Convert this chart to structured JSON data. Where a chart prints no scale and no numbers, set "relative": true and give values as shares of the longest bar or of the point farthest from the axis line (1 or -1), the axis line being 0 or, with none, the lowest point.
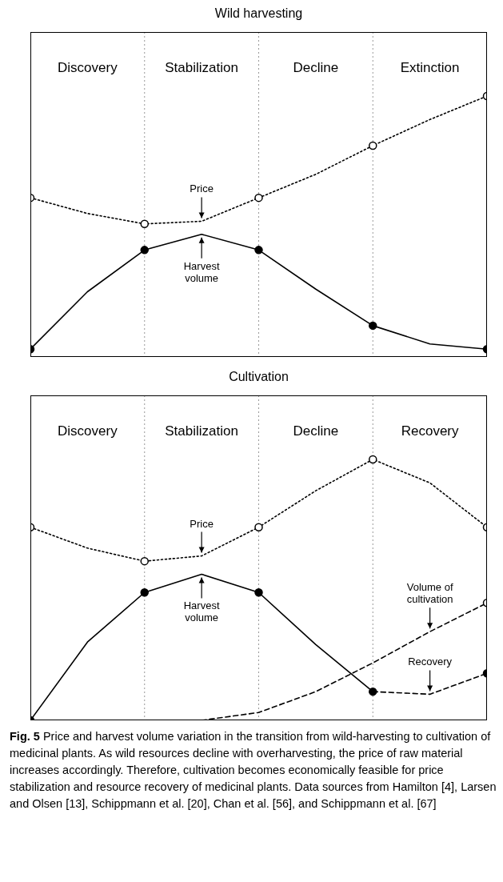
{
  "chart_data": [
    {
      "type": "line",
      "title": "Wild harvesting",
      "relative": true,
      "categories": [
        null,
        "Discovery",
        null,
        "Stabilization",
        null,
        "Decline",
        null,
        "Extinction",
        null
      ],
      "grid": "x",
      "series": [
        {
          "color": "#000000",
          "values": [
            0.61,
            0.55,
            0.51,
            0.52,
            0.61,
            0.7,
            0.81,
            0.91,
            1
          ],
          "line_style": "dotted",
          "marker": "none"
        },
        {
          "color": "#000000",
          "values": [
            0.03,
            0.25,
            0.41,
            0.47,
            0.41,
            0.26,
            0.12,
            0.05,
            0.03
          ],
          "line_style": "solid",
          "marker": "none"
        },
        {
          "type": "scatter",
          "color": "#ffffff",
          "values": [
            0.61,
            null,
            0.51,
            null,
            0.61,
            null,
            0.81,
            null,
            1
          ],
          "marker": "circle"
        },
        {
          "type": "scatter",
          "color": "#000000",
          "values": [
            0.03,
            null,
            0.41,
            null,
            0.41,
            null,
            0.12,
            null,
            0.03
          ],
          "marker": "circle"
        }
      ],
      "annotations": [
        {
          "text": "Price",
          "x": "Stabilization",
          "y": 0.52
        },
        {
          "text": "Harvest volume",
          "x": "Stabilization",
          "y": 0.47
        }
      ]
    },
    {
      "type": "line",
      "title": "Cultivation",
      "relative": true,
      "categories": [
        null,
        "Discovery",
        null,
        "Stabilization",
        null,
        "Decline",
        null,
        "Recovery",
        null
      ],
      "grid": "x",
      "series": [
        {
          "color": "#000000",
          "values": [
            0.74,
            0.66,
            0.61,
            0.63,
            0.74,
            0.88,
            1,
            0.91,
            0.74
          ],
          "line_style": "dotted",
          "marker": "none"
        },
        {
          "color": "#000000",
          "values": [
            0,
            0.3,
            0.49,
            0.56,
            0.49,
            0.29,
            0.11,
            null,
            null
          ],
          "line_style": "solid",
          "marker": "none"
        },
        {
          "color": "#000000",
          "values": [
            null,
            null,
            null,
            null,
            null,
            null,
            0.11,
            0.1,
            0.18
          ],
          "line_style": "dashed",
          "marker": "none"
        },
        {
          "color": "#000000",
          "values": [
            null,
            null,
            null,
            0,
            0.03,
            0.11,
            0.22,
            0.34,
            0.45
          ],
          "line_style": "dashed",
          "marker": "none"
        },
        {
          "type": "scatter",
          "color": "#ffffff",
          "values": [
            0.74,
            null,
            0.61,
            null,
            0.74,
            null,
            1,
            null,
            0.74
          ],
          "marker": "circle"
        },
        {
          "type": "scatter",
          "color": "#ffffff",
          "values": [
            null,
            null,
            null,
            null,
            null,
            null,
            null,
            null,
            0.45
          ],
          "marker": "circle"
        },
        {
          "type": "scatter",
          "color": "#000000",
          "values": [
            0,
            null,
            0.49,
            null,
            0.49,
            null,
            0.11,
            null,
            0.18
          ],
          "marker": "circle"
        }
      ],
      "annotations": [
        {
          "text": "Price",
          "x": "Stabilization",
          "y": 0.63
        },
        {
          "text": "Harvest volume",
          "x": "Stabilization",
          "y": 0.56
        },
        {
          "text": "Volume of cultivation",
          "x": "Recovery",
          "y": 0.34
        },
        {
          "text": "Recovery",
          "x": "Recovery",
          "y": 0.1
        },
        "Fig. 5 Price and harvest volume variation in the transition from wild-harvesting to cultivation of medicinal plants. As wild resources decline with overharvesting, the price of raw material increases accordingly. Therefore, cultivation becomes economically feasible for price stabilization and resource recovery of medicinal plants. Data sources from Hamilton [4], Larsen and Olsen [13], Schippmann et al. [20], Chan et al. [56], and Schippmann et al. [67]"
      ]
    }
  ]
}
